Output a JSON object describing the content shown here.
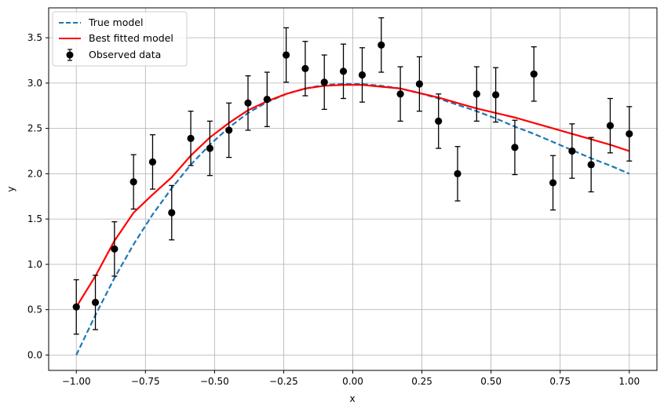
{
  "chart_data": {
    "type": "line",
    "title": "",
    "xlabel": "x",
    "ylabel": "y",
    "xlim": [
      -1.1,
      1.1
    ],
    "ylim": [
      -0.17,
      3.83
    ],
    "grid": true,
    "legend_position": "top-left",
    "xticks": [
      -1.0,
      -0.75,
      -0.5,
      -0.25,
      0.0,
      0.25,
      0.5,
      0.75,
      1.0
    ],
    "xtick_labels": [
      "−1.00",
      "−0.75",
      "−0.50",
      "−0.25",
      "0.00",
      "0.25",
      "0.50",
      "0.75",
      "1.00"
    ],
    "yticks": [
      0.0,
      0.5,
      1.0,
      1.5,
      2.0,
      2.5,
      3.0,
      3.5
    ],
    "ytick_labels": [
      "0.0",
      "0.5",
      "1.0",
      "1.5",
      "2.0",
      "2.5",
      "3.0",
      "3.5"
    ],
    "series": [
      {
        "name": "True model",
        "type": "line",
        "style": "dashed",
        "color": "#1f77b4",
        "x": [
          -1.0,
          -0.931,
          -0.862,
          -0.793,
          -0.724,
          -0.655,
          -0.586,
          -0.517,
          -0.448,
          -0.379,
          -0.31,
          -0.241,
          -0.172,
          -0.103,
          -0.034,
          0.034,
          0.103,
          0.172,
          0.241,
          0.31,
          0.379,
          0.448,
          0.517,
          0.586,
          0.655,
          0.724,
          0.793,
          0.862,
          0.931,
          1.0
        ],
        "y": [
          0.0,
          0.44,
          0.85,
          1.22,
          1.55,
          1.84,
          2.1,
          2.32,
          2.51,
          2.67,
          2.79,
          2.88,
          2.94,
          2.98,
          2.99,
          2.99,
          2.97,
          2.94,
          2.89,
          2.83,
          2.76,
          2.69,
          2.61,
          2.52,
          2.44,
          2.35,
          2.26,
          2.17,
          2.09,
          2.0
        ]
      },
      {
        "name": "Best fitted model",
        "type": "line",
        "style": "solid",
        "color": "#ff0000",
        "x": [
          -1.0,
          -0.931,
          -0.862,
          -0.793,
          -0.724,
          -0.655,
          -0.586,
          -0.517,
          -0.448,
          -0.379,
          -0.31,
          -0.241,
          -0.172,
          -0.103,
          -0.034,
          0.034,
          0.103,
          0.172,
          0.241,
          0.31,
          0.379,
          0.448,
          0.517,
          0.586,
          0.655,
          0.724,
          0.793,
          0.862,
          0.931,
          1.0
        ],
        "y": [
          0.53,
          0.87,
          1.26,
          1.57,
          1.77,
          1.96,
          2.2,
          2.4,
          2.56,
          2.7,
          2.8,
          2.88,
          2.94,
          2.97,
          2.98,
          2.98,
          2.96,
          2.94,
          2.89,
          2.84,
          2.78,
          2.72,
          2.67,
          2.62,
          2.56,
          2.5,
          2.44,
          2.38,
          2.32,
          2.25
        ]
      },
      {
        "name": "Observed data",
        "type": "errorbar",
        "color": "#000000",
        "x": [
          -1.0,
          -0.931,
          -0.862,
          -0.793,
          -0.724,
          -0.655,
          -0.586,
          -0.517,
          -0.448,
          -0.379,
          -0.31,
          -0.241,
          -0.172,
          -0.103,
          -0.034,
          0.034,
          0.103,
          0.172,
          0.241,
          0.31,
          0.379,
          0.448,
          0.517,
          0.586,
          0.655,
          0.724,
          0.793,
          0.862,
          0.931,
          1.0
        ],
        "y": [
          0.53,
          0.58,
          1.17,
          1.91,
          2.13,
          1.57,
          2.39,
          2.28,
          2.48,
          2.78,
          2.82,
          3.31,
          3.16,
          3.01,
          3.13,
          3.09,
          3.42,
          2.88,
          2.99,
          2.58,
          2.0,
          2.88,
          2.87,
          2.29,
          3.1,
          1.9,
          2.25,
          2.1,
          2.53,
          2.44
        ],
        "yerr": 0.3
      }
    ]
  }
}
